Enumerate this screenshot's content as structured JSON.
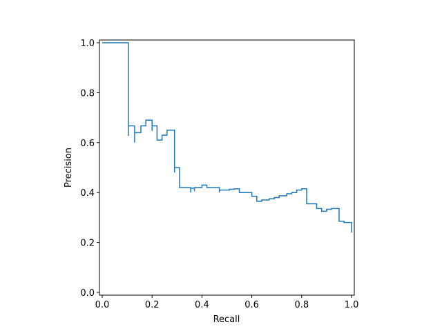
{
  "chart_data": {
    "type": "line",
    "xlabel": "Recall",
    "ylabel": "Precision",
    "color": "#1f77b4",
    "x": [
      0,
      0.105,
      0.105,
      0.105,
      0.13,
      0.13,
      0.13,
      0.155,
      0.155,
      0.175,
      0.175,
      0.2,
      0.2,
      0.2,
      0.22,
      0.22,
      0.24,
      0.24,
      0.26,
      0.26,
      0.29,
      0.29,
      0.29,
      0.31,
      0.31,
      0.355,
      0.355,
      0.355,
      0.37,
      0.37,
      0.37,
      0.4,
      0.4,
      0.42,
      0.42,
      0.47,
      0.47,
      0.47,
      0.51,
      0.51,
      0.53,
      0.53,
      0.55,
      0.55,
      0.6,
      0.6,
      0.62,
      0.62,
      0.64,
      0.64,
      0.67,
      0.67,
      0.69,
      0.69,
      0.71,
      0.71,
      0.74,
      0.74,
      0.76,
      0.76,
      0.78,
      0.78,
      0.8,
      0.8,
      0.82,
      0.82,
      0.86,
      0.86,
      0.88,
      0.88,
      0.9,
      0.9,
      0.92,
      0.92,
      0.95,
      0.95,
      0.97,
      0.97,
      1.0,
      1.0
    ],
    "values": [
      1,
      1,
      0.627,
      0.667,
      0.667,
      0.6,
      0.64,
      0.64,
      0.667,
      0.667,
      0.69,
      0.69,
      0.647,
      0.667,
      0.667,
      0.61,
      0.61,
      0.63,
      0.63,
      0.65,
      0.65,
      0.48,
      0.5,
      0.5,
      0.42,
      0.42,
      0.4,
      0.417,
      0.417,
      0.405,
      0.42,
      0.42,
      0.43,
      0.43,
      0.42,
      0.42,
      0.4,
      0.41,
      0.41,
      0.413,
      0.413,
      0.415,
      0.415,
      0.4,
      0.4,
      0.385,
      0.385,
      0.365,
      0.365,
      0.37,
      0.37,
      0.375,
      0.375,
      0.38,
      0.38,
      0.387,
      0.387,
      0.395,
      0.395,
      0.4,
      0.4,
      0.41,
      0.41,
      0.415,
      0.415,
      0.355,
      0.355,
      0.336,
      0.336,
      0.325,
      0.325,
      0.333,
      0.333,
      0.336,
      0.336,
      0.285,
      0.285,
      0.28,
      0.28,
      0.24
    ],
    "xlim": [
      -0.011,
      1.011
    ],
    "ylim": [
      -0.011,
      1.011
    ],
    "xticks": [
      {
        "value": 0,
        "label": "0.0"
      },
      0.2,
      0.4,
      0.6,
      0.8,
      {
        "value": 1,
        "label": "1.0"
      }
    ],
    "yticks": [
      {
        "value": 0,
        "label": "0.0"
      },
      0.2,
      0.4,
      0.6,
      0.8,
      {
        "value": 1,
        "label": "1.0"
      }
    ],
    "grid": false
  }
}
